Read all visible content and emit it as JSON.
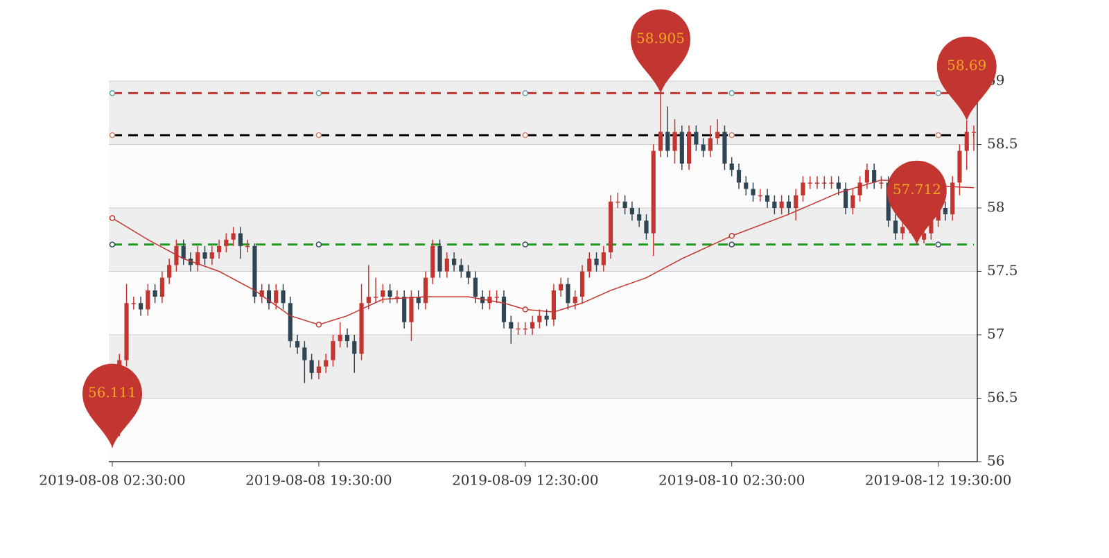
{
  "chart_data": {
    "type": "candlestick",
    "categories": [
      "2019-08-08 02:30:00",
      null,
      null,
      null,
      null,
      null,
      null,
      null,
      null,
      null,
      null,
      null,
      null,
      null,
      null,
      null,
      null,
      null,
      null,
      null,
      null,
      null,
      null,
      null,
      null,
      null,
      null,
      null,
      null,
      "2019-08-08 19:30:00",
      null,
      null,
      null,
      null,
      null,
      null,
      null,
      null,
      null,
      null,
      null,
      null,
      null,
      null,
      null,
      null,
      null,
      null,
      null,
      null,
      null,
      null,
      null,
      null,
      null,
      null,
      null,
      null,
      "2019-08-09 12:30:00",
      null,
      null,
      null,
      null,
      null,
      null,
      null,
      null,
      null,
      null,
      null,
      null,
      null,
      null,
      null,
      null,
      null,
      null,
      null,
      null,
      null,
      null,
      null,
      null,
      null,
      null,
      null,
      null,
      "2019-08-10 02:30:00",
      null,
      null,
      null,
      null,
      null,
      null,
      null,
      null,
      null,
      null,
      null,
      null,
      null,
      null,
      null,
      null,
      null,
      null,
      null,
      null,
      null,
      null,
      null,
      null,
      null,
      null,
      null,
      null,
      "2019-08-12 19:30:00",
      null,
      null,
      null,
      null,
      null
    ],
    "open": [
      56.2,
      56.25,
      56.8,
      57.25,
      57.25,
      57.2,
      57.35,
      57.3,
      57.45,
      57.55,
      57.7,
      57.6,
      57.55,
      57.65,
      57.6,
      57.65,
      57.7,
      57.75,
      57.8,
      57.7,
      57.7,
      57.3,
      57.35,
      57.25,
      57.35,
      57.25,
      56.95,
      56.9,
      56.8,
      56.7,
      56.75,
      56.8,
      56.95,
      57.0,
      56.95,
      56.85,
      57.25,
      57.3,
      57.3,
      57.35,
      57.3,
      57.3,
      57.1,
      57.3,
      57.25,
      57.45,
      57.7,
      57.5,
      57.6,
      57.55,
      57.5,
      57.45,
      57.3,
      57.25,
      57.3,
      57.3,
      57.1,
      57.05,
      57.05,
      57.05,
      57.1,
      57.15,
      57.12,
      57.35,
      57.4,
      57.25,
      57.3,
      57.5,
      57.6,
      57.55,
      57.65,
      58.05,
      58.05,
      58.0,
      57.95,
      57.9,
      57.8,
      58.45,
      58.6,
      58.45,
      58.6,
      58.35,
      58.6,
      58.5,
      58.45,
      58.55,
      58.6,
      58.35,
      58.3,
      58.2,
      58.15,
      58.1,
      58.1,
      58.05,
      58.0,
      58.05,
      58.0,
      58.1,
      58.2,
      58.2,
      58.2,
      58.2,
      58.2,
      58.15,
      58.0,
      58.1,
      58.2,
      58.3,
      58.2,
      58.2,
      57.9,
      57.8,
      57.85,
      57.85,
      57.75,
      57.8,
      57.9,
      58.0,
      57.95,
      58.2,
      58.45,
      58.6
    ],
    "high": [
      56.3,
      56.85,
      57.4,
      57.3,
      57.3,
      57.4,
      57.4,
      57.5,
      57.6,
      57.75,
      57.75,
      57.65,
      57.7,
      57.7,
      57.7,
      57.75,
      57.8,
      57.85,
      57.85,
      57.75,
      57.72,
      57.4,
      57.4,
      57.4,
      57.4,
      57.3,
      57.0,
      56.95,
      56.85,
      56.8,
      56.85,
      57.0,
      57.1,
      57.05,
      57.0,
      57.4,
      57.55,
      57.45,
      57.4,
      57.4,
      57.35,
      57.35,
      57.35,
      57.35,
      57.5,
      57.75,
      57.75,
      57.65,
      57.65,
      57.6,
      57.55,
      57.5,
      57.35,
      57.35,
      57.35,
      57.35,
      57.15,
      57.1,
      57.1,
      57.15,
      57.2,
      57.2,
      57.4,
      57.45,
      57.45,
      57.35,
      57.55,
      57.65,
      57.65,
      57.7,
      58.1,
      58.12,
      58.1,
      58.05,
      58.0,
      57.95,
      58.5,
      58.905,
      58.8,
      58.7,
      58.65,
      58.65,
      58.65,
      58.55,
      58.65,
      58.7,
      58.65,
      58.4,
      58.35,
      58.25,
      58.2,
      58.15,
      58.15,
      58.1,
      58.1,
      58.1,
      58.15,
      58.25,
      58.25,
      58.25,
      58.25,
      58.25,
      58.25,
      58.2,
      58.15,
      58.25,
      58.35,
      58.35,
      58.25,
      58.25,
      57.95,
      57.9,
      57.9,
      57.9,
      57.85,
      57.95,
      58.05,
      58.05,
      58.25,
      58.5,
      58.69,
      58.65
    ],
    "low": [
      56.111,
      56.2,
      56.75,
      57.2,
      57.15,
      57.15,
      57.25,
      57.25,
      57.4,
      57.5,
      57.55,
      57.5,
      57.5,
      57.55,
      57.55,
      57.6,
      57.65,
      57.7,
      57.6,
      57.65,
      57.25,
      57.25,
      57.2,
      57.2,
      57.2,
      56.9,
      56.85,
      56.62,
      56.65,
      56.65,
      56.7,
      56.75,
      56.9,
      56.9,
      56.7,
      56.8,
      57.2,
      57.25,
      57.25,
      57.25,
      57.25,
      57.05,
      56.95,
      57.2,
      57.2,
      57.4,
      57.45,
      57.45,
      57.5,
      57.45,
      57.4,
      57.25,
      57.2,
      57.2,
      57.25,
      57.05,
      56.93,
      57.0,
      57.0,
      57.0,
      57.05,
      57.07,
      57.07,
      57.3,
      57.2,
      57.2,
      57.25,
      57.45,
      57.5,
      57.5,
      57.6,
      58.0,
      57.95,
      57.9,
      57.85,
      57.75,
      57.62,
      58.4,
      58.4,
      58.35,
      58.3,
      58.3,
      58.45,
      58.4,
      58.4,
      58.5,
      58.3,
      58.25,
      58.15,
      58.1,
      58.05,
      58.05,
      58.0,
      57.95,
      57.95,
      57.95,
      57.9,
      58.05,
      58.15,
      58.15,
      58.15,
      58.15,
      58.1,
      57.95,
      57.95,
      58.05,
      58.15,
      58.15,
      58.15,
      57.85,
      57.75,
      57.75,
      57.8,
      57.712,
      57.72,
      57.75,
      57.85,
      57.9,
      57.9,
      58.1,
      58.3,
      58.45
    ],
    "close": [
      56.25,
      56.8,
      57.25,
      57.25,
      57.2,
      57.35,
      57.3,
      57.45,
      57.55,
      57.7,
      57.6,
      57.55,
      57.65,
      57.6,
      57.65,
      57.7,
      57.75,
      57.8,
      57.7,
      57.7,
      57.3,
      57.35,
      57.25,
      57.35,
      57.25,
      56.95,
      56.9,
      56.8,
      56.7,
      56.75,
      56.8,
      56.95,
      57.0,
      56.95,
      56.85,
      57.25,
      57.3,
      57.3,
      57.35,
      57.3,
      57.3,
      57.1,
      57.3,
      57.25,
      57.45,
      57.7,
      57.5,
      57.6,
      57.55,
      57.5,
      57.45,
      57.3,
      57.25,
      57.3,
      57.3,
      57.1,
      57.05,
      57.05,
      57.05,
      57.1,
      57.15,
      57.12,
      57.35,
      57.4,
      57.25,
      57.3,
      57.5,
      57.6,
      57.55,
      57.65,
      58.05,
      58.05,
      58.0,
      57.95,
      57.9,
      57.8,
      58.45,
      58.6,
      58.45,
      58.6,
      58.35,
      58.6,
      58.5,
      58.45,
      58.55,
      58.6,
      58.35,
      58.3,
      58.2,
      58.15,
      58.1,
      58.1,
      58.05,
      58.0,
      58.05,
      58.0,
      58.1,
      58.2,
      58.2,
      58.2,
      58.2,
      58.2,
      58.15,
      58.0,
      58.1,
      58.2,
      58.3,
      58.2,
      58.2,
      57.9,
      57.8,
      57.85,
      57.85,
      57.75,
      57.8,
      57.9,
      58.0,
      57.95,
      58.2,
      58.45,
      58.6,
      58.6
    ],
    "up_color": "#c23531",
    "down_color": "#2f4554",
    "ylim": [
      56,
      59
    ],
    "yticks": [
      56,
      56.5,
      57,
      57.5,
      58,
      58.5,
      59
    ],
    "ma": {
      "color": "#c23531",
      "x": [
        0,
        5,
        10,
        15,
        20,
        25,
        29,
        33,
        38,
        44,
        50,
        55,
        58,
        62,
        66,
        70,
        75,
        80,
        87,
        95,
        102,
        108,
        113,
        117,
        121
      ],
      "values": [
        57.92,
        57.75,
        57.6,
        57.5,
        57.35,
        57.15,
        57.08,
        57.15,
        57.28,
        57.3,
        57.3,
        57.25,
        57.2,
        57.18,
        57.25,
        57.35,
        57.45,
        57.6,
        57.78,
        57.95,
        58.12,
        58.22,
        58.2,
        58.17,
        58.16
      ]
    },
    "mark_lines": [
      {
        "value": 58.905,
        "color": "#c23531",
        "symbol_color": "#61a0a8"
      },
      {
        "value": 58.574,
        "color": "#000000",
        "symbol_color": "#d48265"
      },
      {
        "value": 57.712,
        "color": "#1f9a1f",
        "symbol_color": "#2f4554"
      }
    ],
    "mark_points": [
      {
        "x": 77,
        "value": 58.905
      },
      {
        "x": 0,
        "value": 56.111
      },
      {
        "x": 120,
        "value": 58.69
      },
      {
        "x": 113,
        "value": 57.712
      }
    ],
    "mark_point_color": "#c23531",
    "mark_point_text_color": "#f5a623"
  }
}
